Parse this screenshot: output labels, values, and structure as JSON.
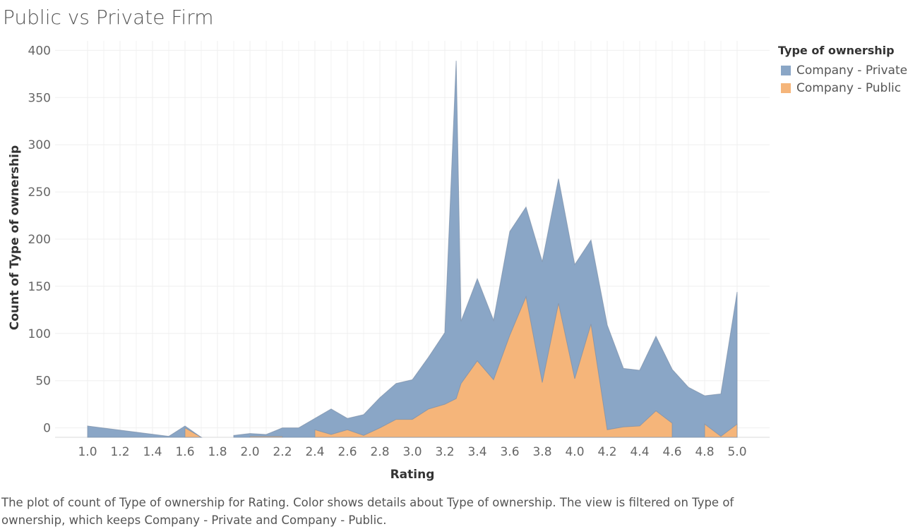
{
  "title": "Public vs Private Firm",
  "caption": "The plot of count of Type of ownership for Rating.  Color shows details about Type of ownership. The view is filtered on Type of ownership, which keeps Company - Private and Company - Public.",
  "legend": {
    "title": "Type of ownership",
    "items": [
      {
        "label": "Company - Private",
        "color": "#8aa6c6"
      },
      {
        "label": "Company - Public",
        "color": "#f5b57a"
      }
    ]
  },
  "chart_data": {
    "type": "area",
    "stacked": true,
    "title": "Public vs Private Firm",
    "xlabel": "Rating",
    "ylabel": "Count of Type of ownership",
    "xlim": [
      0.8,
      5.2
    ],
    "ylim": [
      -10,
      410
    ],
    "x_ticks": [
      "1.0",
      "1.2",
      "1.4",
      "1.6",
      "1.8",
      "2.0",
      "2.2",
      "2.4",
      "2.6",
      "2.8",
      "3.0",
      "3.2",
      "3.4",
      "3.6",
      "3.8",
      "4.0",
      "4.2",
      "4.4",
      "4.6",
      "4.8",
      "5.0"
    ],
    "y_ticks": [
      "0",
      "50",
      "100",
      "150",
      "200",
      "250",
      "300",
      "350",
      "400"
    ],
    "grid": true,
    "legend_position": "top-right",
    "series": [
      {
        "name": "Company - Public",
        "color": "#f5b57a",
        "segments": [
          [
            [
              1.6,
              0
            ],
            [
              1.7,
              -10
            ]
          ],
          [
            [
              2.0,
              -9
            ],
            [
              2.1,
              -9
            ],
            [
              2.2,
              -9
            ]
          ],
          [
            [
              2.4,
              -2
            ],
            [
              2.5,
              -7
            ],
            [
              2.6,
              -2
            ],
            [
              2.7,
              -8
            ],
            [
              2.8,
              0
            ],
            [
              2.9,
              9
            ],
            [
              3.0,
              9
            ],
            [
              3.1,
              20
            ],
            [
              3.2,
              25
            ],
            [
              3.27,
              31
            ],
            [
              3.3,
              47
            ],
            [
              3.4,
              71
            ],
            [
              3.5,
              51
            ],
            [
              3.6,
              98
            ],
            [
              3.7,
              139
            ],
            [
              3.8,
              48
            ],
            [
              3.9,
              132
            ],
            [
              4.0,
              52
            ],
            [
              4.1,
              110
            ],
            [
              4.2,
              -2
            ],
            [
              4.3,
              1
            ],
            [
              4.4,
              2
            ],
            [
              4.5,
              18
            ],
            [
              4.6,
              5
            ]
          ],
          [
            [
              4.8,
              4
            ],
            [
              4.9,
              -9
            ],
            [
              5.0,
              4
            ]
          ]
        ]
      },
      {
        "name": "Company - Private",
        "color": "#8aa6c6",
        "segments": [
          [
            [
              1.0,
              2
            ],
            [
              1.5,
              -9
            ],
            [
              1.6,
              2
            ],
            [
              1.7,
              -10
            ]
          ],
          [
            [
              1.9,
              -8
            ],
            [
              2.0,
              -6
            ],
            [
              2.1,
              -7
            ],
            [
              2.2,
              0
            ],
            [
              2.3,
              0
            ],
            [
              2.4,
              10
            ],
            [
              2.5,
              20
            ],
            [
              2.6,
              10
            ],
            [
              2.7,
              14
            ],
            [
              2.8,
              32
            ],
            [
              2.9,
              47
            ],
            [
              3.0,
              51
            ],
            [
              3.1,
              75
            ],
            [
              3.2,
              101
            ],
            [
              3.27,
              389
            ],
            [
              3.3,
              113
            ],
            [
              3.4,
              158
            ],
            [
              3.5,
              114
            ],
            [
              3.6,
              208
            ],
            [
              3.7,
              234
            ],
            [
              3.8,
              176
            ],
            [
              3.9,
              264
            ],
            [
              4.0,
              173
            ],
            [
              4.1,
              199
            ],
            [
              4.2,
              109
            ],
            [
              4.3,
              63
            ],
            [
              4.4,
              61
            ],
            [
              4.5,
              97
            ],
            [
              4.6,
              62
            ],
            [
              4.7,
              43
            ],
            [
              4.8,
              34
            ],
            [
              4.9,
              36
            ],
            [
              5.0,
              144
            ]
          ]
        ]
      }
    ]
  }
}
